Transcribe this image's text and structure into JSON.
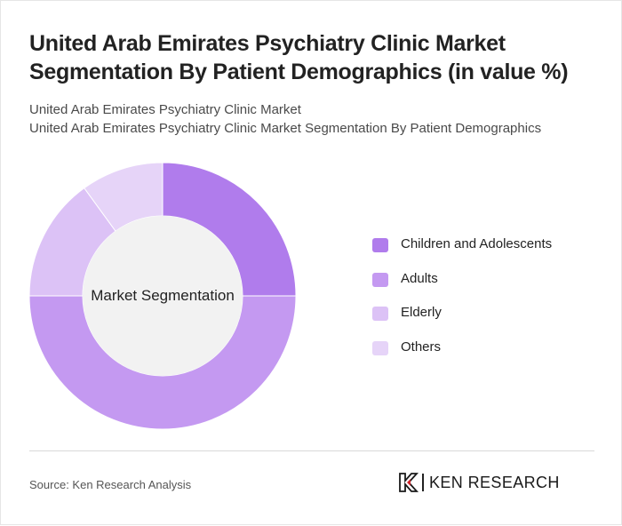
{
  "header": {
    "title": "United Arab Emirates Psychiatry Clinic Market Segmentation By Patient Demographics (in value %)",
    "subtitle_1": "United Arab Emirates Psychiatry Clinic Market",
    "subtitle_2": "United Arab Emirates Psychiatry Clinic Market Segmentation By Patient Demographics"
  },
  "chart_data": {
    "type": "pie",
    "center_label": "Market Segmentation",
    "categories": [
      "Children and Adolescents",
      "Adults",
      "Elderly",
      "Others"
    ],
    "values": [
      25,
      50,
      15,
      10
    ],
    "unit": "%",
    "colors": [
      "#b07cec",
      "#c499f1",
      "#dcc2f6",
      "#e6d4f8"
    ],
    "center_color": "#f2f2f2",
    "legend_position": "right"
  },
  "footer": {
    "source": "Source: Ken Research Analysis",
    "brand": "KEN RESEARCH"
  }
}
